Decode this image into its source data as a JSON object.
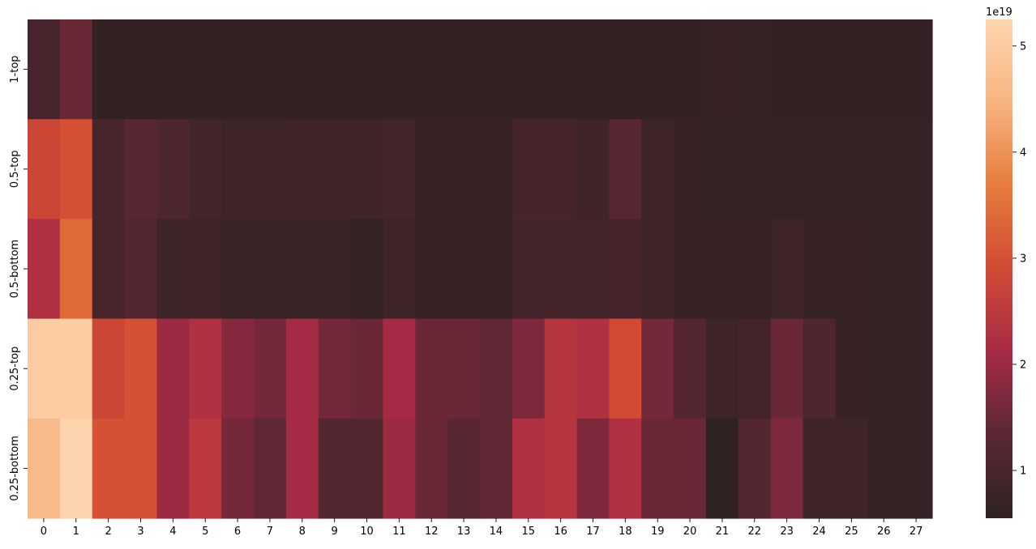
{
  "chart_data": {
    "type": "heatmap",
    "title": "",
    "xlabel": "",
    "ylabel": "",
    "x_categories": [
      "0",
      "1",
      "2",
      "3",
      "4",
      "5",
      "6",
      "7",
      "8",
      "9",
      "10",
      "11",
      "12",
      "13",
      "14",
      "15",
      "16",
      "17",
      "18",
      "19",
      "20",
      "21",
      "22",
      "23",
      "24",
      "25",
      "26",
      "27"
    ],
    "y_categories": [
      "1-top",
      "0.5-top",
      "0.5-bottom",
      "0.25-top",
      "0.25-bottom"
    ],
    "values_e19": [
      [
        1.0,
        1.5,
        0.62,
        0.62,
        0.62,
        0.6,
        0.62,
        0.62,
        0.62,
        0.62,
        0.62,
        0.62,
        0.62,
        0.62,
        0.62,
        0.62,
        0.62,
        0.62,
        0.62,
        0.62,
        0.62,
        0.7,
        0.65,
        0.62,
        0.62,
        0.62,
        0.62,
        0.62
      ],
      [
        2.8,
        3.0,
        1.0,
        1.3,
        1.1,
        0.9,
        0.8,
        0.8,
        0.85,
        0.85,
        0.85,
        0.9,
        0.7,
        0.7,
        0.7,
        0.95,
        0.95,
        0.85,
        1.3,
        0.8,
        0.7,
        0.65,
        0.65,
        0.65,
        0.65,
        0.65,
        0.65,
        0.65
      ],
      [
        2.3,
        3.4,
        1.0,
        1.2,
        0.8,
        0.8,
        0.75,
        0.75,
        0.75,
        0.75,
        0.65,
        0.8,
        0.7,
        0.7,
        0.7,
        0.9,
        0.9,
        0.9,
        0.95,
        0.8,
        0.7,
        0.7,
        0.7,
        0.8,
        0.7,
        0.7,
        0.65,
        0.65
      ],
      [
        5.0,
        5.0,
        2.8,
        3.0,
        2.0,
        2.3,
        1.8,
        1.6,
        2.1,
        1.6,
        1.5,
        2.1,
        1.5,
        1.5,
        1.4,
        1.7,
        2.4,
        2.3,
        2.9,
        1.6,
        1.2,
        0.8,
        0.9,
        1.5,
        1.1,
        0.7,
        0.65,
        0.65
      ],
      [
        4.6,
        5.2,
        3.0,
        3.0,
        2.0,
        2.5,
        1.6,
        1.4,
        2.1,
        1.2,
        1.2,
        2.0,
        1.5,
        1.3,
        1.4,
        2.3,
        2.4,
        1.7,
        2.3,
        1.5,
        1.5,
        0.55,
        1.2,
        1.7,
        0.8,
        0.8,
        0.65,
        0.65
      ]
    ],
    "colorbar": {
      "offset_label": "1e19",
      "ticks": [
        "1",
        "2",
        "3",
        "4",
        "5"
      ],
      "tick_values_e19": [
        1,
        2,
        3,
        4,
        5
      ],
      "range_e19": [
        0.55,
        5.25
      ],
      "colormap": "icefire-like dark-to-light",
      "colors": [
        "#2f2222",
        "#5a2733",
        "#a62a45",
        "#d24a34",
        "#e67c3d",
        "#f7b47f",
        "#fed6b1"
      ]
    },
    "grid": false
  }
}
